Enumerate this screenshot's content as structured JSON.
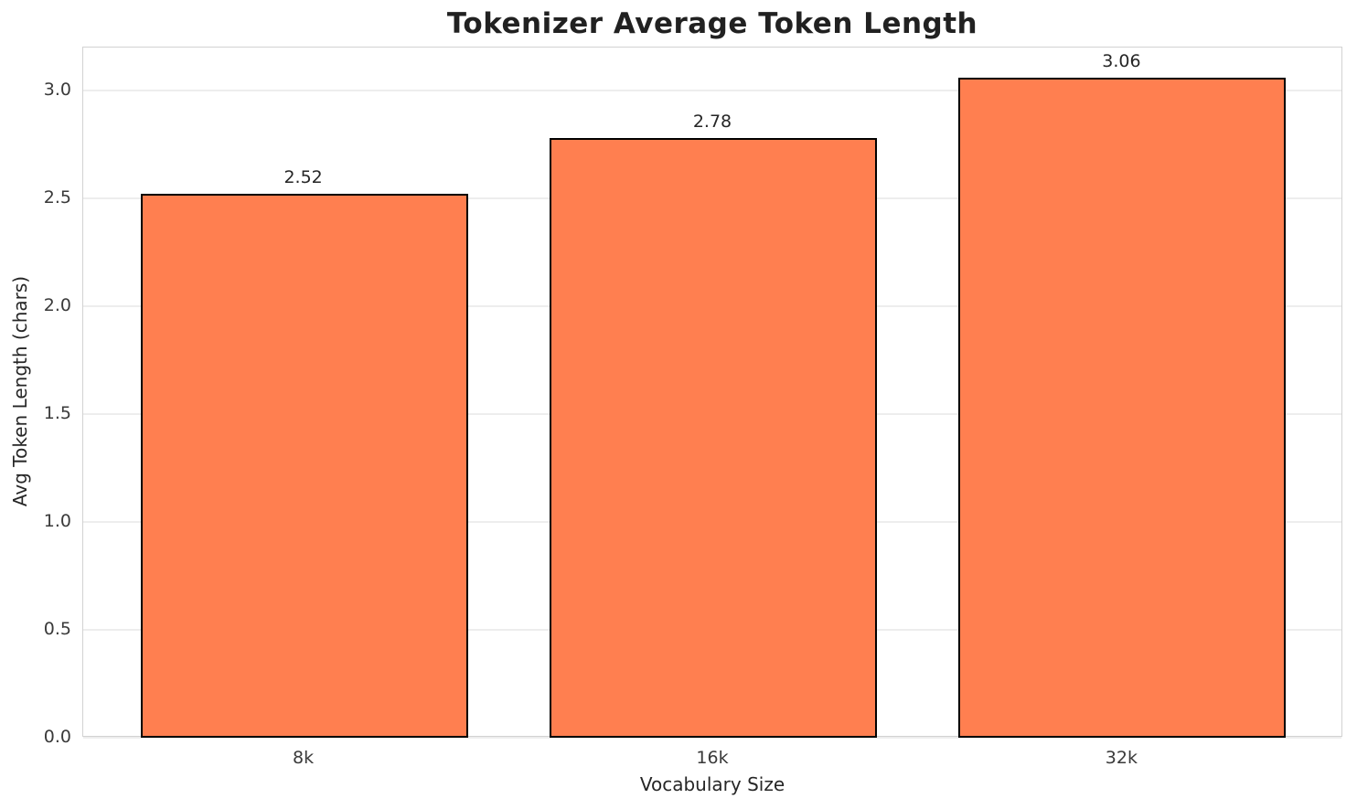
{
  "chart_data": {
    "type": "bar",
    "title": "Tokenizer Average Token Length",
    "xlabel": "Vocabulary Size",
    "ylabel": "Avg Token Length (chars)",
    "categories": [
      "8k",
      "16k",
      "32k"
    ],
    "values": [
      2.52,
      2.78,
      3.06
    ],
    "value_labels": [
      "2.52",
      "2.78",
      "3.06"
    ],
    "yticks": [
      0.0,
      0.5,
      1.0,
      1.5,
      2.0,
      2.5,
      3.0
    ],
    "ytick_labels": [
      "0.0",
      "0.5",
      "1.0",
      "1.5",
      "2.0",
      "2.5",
      "3.0"
    ],
    "ylim": [
      0,
      3.2
    ],
    "bar_width_fraction": 0.8,
    "grid": true,
    "legend": null,
    "colors": {
      "bar_fill": "#FF7F50",
      "bar_edge": "#000000",
      "grid": "#ededed",
      "spine": "#d2d2d2",
      "text": "#262626",
      "title": "#212121",
      "background": "#ffffff"
    }
  }
}
